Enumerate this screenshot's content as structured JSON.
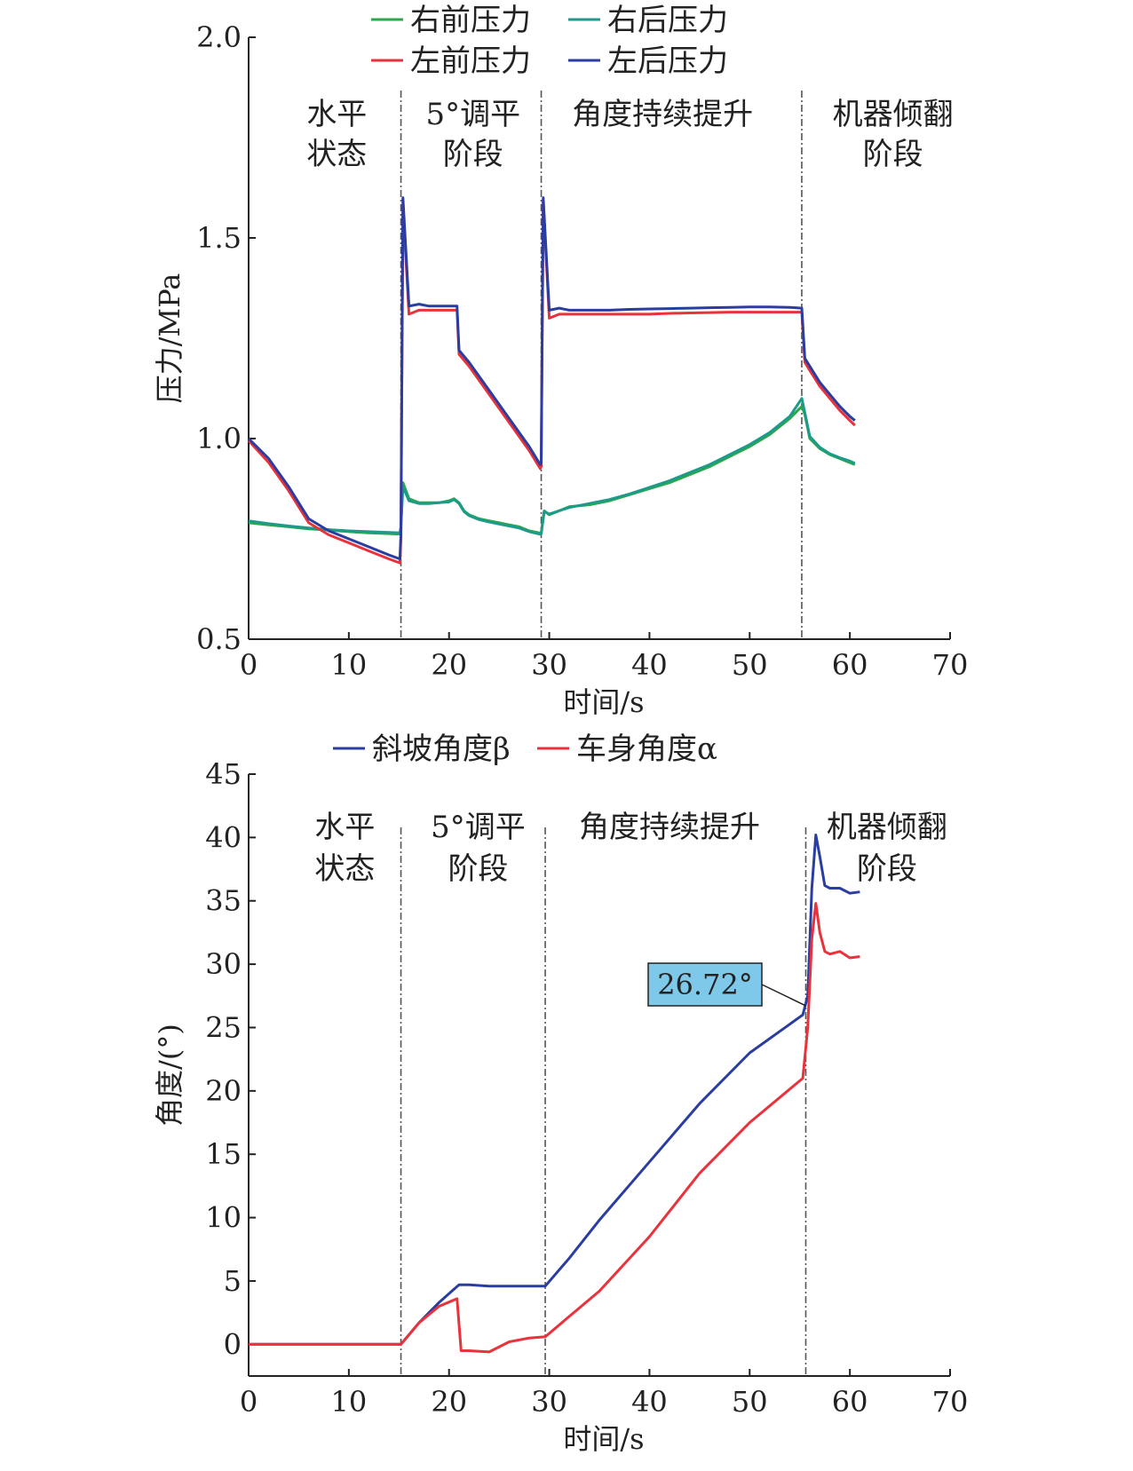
{
  "chart_data": [
    {
      "type": "line",
      "title": "",
      "xlabel": "时间/s",
      "ylabel": "压力/MPa",
      "xlim": [
        0,
        70
      ],
      "ylim": [
        0.5,
        2.0
      ],
      "xticks": [
        "0",
        "10",
        "20",
        "30",
        "40",
        "50",
        "60",
        "70"
      ],
      "yticks": [
        "0.5",
        "1.0",
        "1.5",
        "2.0"
      ],
      "grid": false,
      "legend_position": "top-center",
      "phase_boundaries": [
        15.2,
        29.2,
        55.2
      ],
      "phases": [
        {
          "line1": "水平",
          "line2": "状态",
          "x": 8.8
        },
        {
          "line1": "5°调平",
          "line2": "阶段",
          "x": 22.4
        },
        {
          "line1": "角度持续提升",
          "line2": "",
          "x": 41.3
        },
        {
          "line1": "机器倾翻",
          "line2": "阶段",
          "x": 64.3
        }
      ],
      "series": [
        {
          "name": "右前压力",
          "color": "#2aa84a",
          "x": [
            0,
            2,
            4,
            6,
            8,
            10,
            12,
            14,
            15.1,
            15.2,
            15.4,
            16,
            17,
            18,
            19,
            20,
            20.5,
            21,
            21.5,
            22,
            23,
            24,
            25,
            26,
            27,
            28,
            29,
            29.2,
            29.5,
            30,
            32,
            34,
            36,
            38,
            40,
            42,
            44,
            46,
            48,
            50,
            52,
            54,
            55.2,
            55.5,
            56,
            57,
            58,
            59,
            60,
            60.5
          ],
          "y": [
            0.79,
            0.785,
            0.78,
            0.775,
            0.772,
            0.768,
            0.765,
            0.763,
            0.762,
            0.78,
            0.89,
            0.85,
            0.84,
            0.84,
            0.84,
            0.845,
            0.85,
            0.84,
            0.82,
            0.81,
            0.8,
            0.795,
            0.79,
            0.785,
            0.78,
            0.77,
            0.765,
            0.765,
            0.82,
            0.81,
            0.83,
            0.835,
            0.845,
            0.86,
            0.875,
            0.89,
            0.91,
            0.93,
            0.955,
            0.98,
            1.01,
            1.05,
            1.08,
            1.06,
            1.0,
            0.975,
            0.96,
            0.95,
            0.94,
            0.935
          ]
        },
        {
          "name": "右后压力",
          "color": "#1e9a8a",
          "x": [
            0,
            2,
            4,
            6,
            8,
            10,
            12,
            14,
            15.1,
            15.2,
            15.4,
            16,
            17,
            18,
            19,
            20,
            20.5,
            21,
            21.5,
            22,
            23,
            24,
            25,
            26,
            27,
            28,
            29,
            29.2,
            29.5,
            30,
            32,
            34,
            36,
            38,
            40,
            42,
            44,
            46,
            48,
            50,
            52,
            54,
            55.2,
            55.5,
            56,
            57,
            58,
            59,
            60,
            60.5
          ],
          "y": [
            0.795,
            0.788,
            0.782,
            0.777,
            0.773,
            0.77,
            0.768,
            0.766,
            0.765,
            0.78,
            0.88,
            0.845,
            0.838,
            0.838,
            0.84,
            0.842,
            0.848,
            0.838,
            0.818,
            0.808,
            0.798,
            0.792,
            0.787,
            0.782,
            0.777,
            0.768,
            0.762,
            0.762,
            0.818,
            0.812,
            0.828,
            0.838,
            0.848,
            0.862,
            0.878,
            0.895,
            0.915,
            0.935,
            0.96,
            0.985,
            1.015,
            1.055,
            1.1,
            1.065,
            1.005,
            0.978,
            0.962,
            0.952,
            0.944,
            0.938
          ]
        },
        {
          "name": "左前压力",
          "color": "#e8323c",
          "x": [
            0,
            2,
            4,
            6,
            8,
            10,
            12,
            14,
            15.1,
            15.2,
            15.4,
            16,
            17,
            18,
            19,
            20,
            20.8,
            21,
            22,
            24,
            26,
            28,
            29.1,
            29.2,
            29.4,
            30,
            31,
            32,
            34,
            36,
            38,
            40,
            42,
            44,
            46,
            48,
            50,
            52,
            54,
            55.2,
            55.5,
            56,
            57,
            58,
            59,
            60,
            60.5
          ],
          "y": [
            0.995,
            0.94,
            0.87,
            0.79,
            0.76,
            0.74,
            0.72,
            0.7,
            0.69,
            0.75,
            1.58,
            1.31,
            1.32,
            1.32,
            1.32,
            1.32,
            1.32,
            1.21,
            1.18,
            1.11,
            1.04,
            0.97,
            0.925,
            0.93,
            1.59,
            1.3,
            1.31,
            1.31,
            1.31,
            1.31,
            1.31,
            1.31,
            1.312,
            1.313,
            1.314,
            1.315,
            1.315,
            1.315,
            1.315,
            1.315,
            1.19,
            1.17,
            1.13,
            1.1,
            1.07,
            1.045,
            1.033
          ]
        },
        {
          "name": "左后压力",
          "color": "#2a3da0",
          "x": [
            0,
            2,
            4,
            6,
            8,
            10,
            12,
            14,
            15.1,
            15.2,
            15.4,
            16,
            17,
            18,
            19,
            20,
            20.8,
            21,
            22,
            24,
            26,
            28,
            29.1,
            29.2,
            29.4,
            30,
            31,
            32,
            34,
            36,
            38,
            40,
            42,
            44,
            46,
            48,
            50,
            52,
            54,
            55.2,
            55.5,
            56,
            57,
            58,
            59,
            60,
            60.5
          ],
          "y": [
            1.0,
            0.95,
            0.88,
            0.8,
            0.77,
            0.75,
            0.73,
            0.71,
            0.7,
            0.76,
            1.6,
            1.33,
            1.335,
            1.33,
            1.33,
            1.33,
            1.33,
            1.22,
            1.19,
            1.12,
            1.05,
            0.98,
            0.935,
            0.94,
            1.6,
            1.32,
            1.325,
            1.32,
            1.32,
            1.32,
            1.322,
            1.323,
            1.324,
            1.325,
            1.326,
            1.327,
            1.328,
            1.328,
            1.327,
            1.325,
            1.2,
            1.18,
            1.14,
            1.11,
            1.08,
            1.055,
            1.045
          ]
        }
      ]
    },
    {
      "type": "line",
      "title": "",
      "xlabel": "时间/s",
      "ylabel": "角度/(°)",
      "xlim": [
        0,
        70
      ],
      "ylim": [
        -2.5,
        45
      ],
      "xticks": [
        "0",
        "10",
        "20",
        "30",
        "40",
        "50",
        "60",
        "70"
      ],
      "yticks": [
        "0",
        "5",
        "10",
        "15",
        "20",
        "25",
        "30",
        "35",
        "40",
        "45"
      ],
      "grid": false,
      "legend_position": "top-center",
      "phase_boundaries": [
        15.2,
        29.6,
        55.6
      ],
      "phases": [
        {
          "line1": "水平",
          "line2": "状态",
          "x": 9.6
        },
        {
          "line1": "5°调平",
          "line2": "阶段",
          "x": 22.9
        },
        {
          "line1": "角度持续提升",
          "line2": "",
          "x": 42.0
        },
        {
          "line1": "机器倾翻",
          "line2": "阶段",
          "x": 63.7
        }
      ],
      "annotation": {
        "text": "26.72°",
        "x": 55.6,
        "y": 26.72
      },
      "series": [
        {
          "name": "斜坡角度β",
          "color": "#2a3da0",
          "x": [
            0,
            5,
            10,
            15.2,
            17,
            19,
            21,
            22,
            24,
            26,
            28,
            29.6,
            32,
            35,
            40,
            45,
            50,
            55.3,
            55.8,
            56.2,
            56.6,
            57,
            57.5,
            58,
            59,
            60,
            61
          ],
          "y": [
            0,
            0,
            0,
            0,
            1.7,
            3.3,
            4.7,
            4.7,
            4.6,
            4.6,
            4.6,
            4.6,
            6.8,
            9.8,
            14.4,
            19.0,
            23.0,
            26.0,
            27.5,
            36.0,
            40.2,
            38.5,
            36.2,
            36.0,
            36.0,
            35.6,
            35.7
          ]
        },
        {
          "name": "车身角度α",
          "color": "#e8323c",
          "x": [
            0,
            5,
            10,
            15.2,
            17,
            19,
            20.8,
            21.2,
            22,
            24,
            26,
            28,
            29.6,
            32,
            35,
            40,
            45,
            50,
            55.3,
            55.8,
            56.2,
            56.6,
            57,
            57.5,
            58,
            59,
            60,
            61
          ],
          "y": [
            0,
            0,
            0,
            0,
            1.7,
            3.0,
            3.6,
            -0.5,
            -0.5,
            -0.6,
            0.2,
            0.5,
            0.6,
            2.2,
            4.2,
            8.5,
            13.5,
            17.5,
            21.0,
            25.0,
            32.0,
            34.8,
            32.5,
            31.0,
            30.8,
            31.0,
            30.5,
            30.6
          ]
        }
      ]
    }
  ]
}
